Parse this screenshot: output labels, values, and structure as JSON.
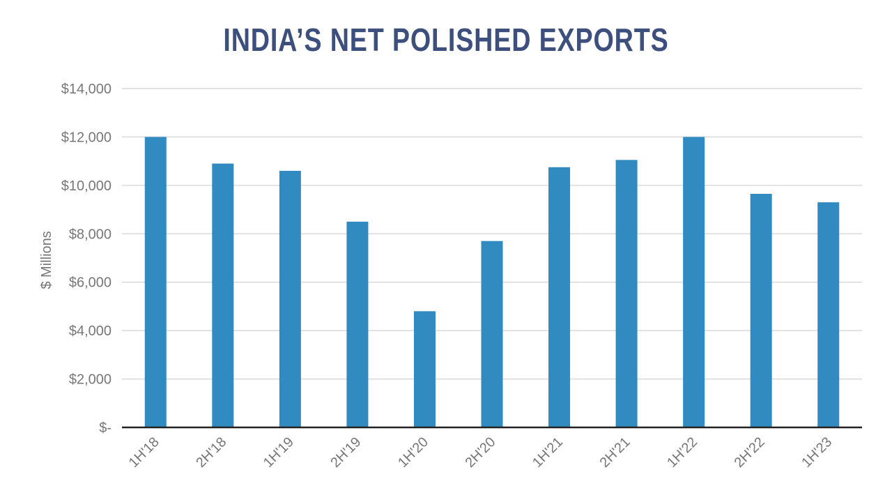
{
  "colors": {
    "title": "#3d4f7c",
    "bar": "#318ac0",
    "grid": "#d9d9d9",
    "axis": "#222222",
    "text": "#777777"
  },
  "chart_data": {
    "type": "bar",
    "title": "INDIA’S NET POLISHED EXPORTS",
    "xlabel": "",
    "ylabel": "$ Millions",
    "categories": [
      "1H'18",
      "2H'18",
      "1H'19",
      "2H'19",
      "1H'20",
      "2H'20",
      "1H'21",
      "2H'21",
      "1H'22",
      "2H'22",
      "1H'23"
    ],
    "values": [
      12000,
      10900,
      10600,
      8500,
      4800,
      7700,
      10750,
      11050,
      12000,
      9650,
      9300
    ],
    "ylim": [
      0,
      14000
    ],
    "yticks": [
      0,
      2000,
      4000,
      6000,
      8000,
      10000,
      12000,
      14000
    ],
    "ytick_labels": [
      "$-",
      "$2,000",
      "$4,000",
      "$6,000",
      "$8,000",
      "$10,000",
      "$12,000",
      "$14,000"
    ],
    "grid": true,
    "legend": "none"
  }
}
